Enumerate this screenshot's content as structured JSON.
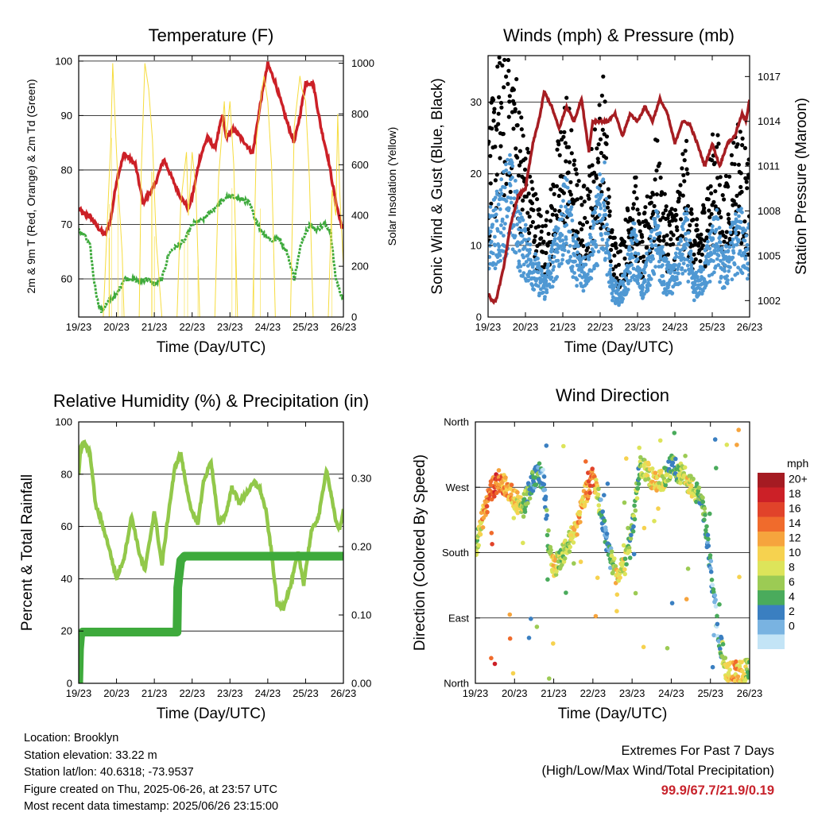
{
  "chart_data": [
    {
      "type": "line",
      "title": "Temperature (F)",
      "xlabel": "Time (Day/UTC)",
      "ylabel": "2m & 9m T (Red, Orange) & 2m Td (Green)",
      "y2label": "Solar Insolation (Yellow)",
      "x_ticks": [
        "19/23",
        "20/23",
        "21/23",
        "22/23",
        "23/23",
        "24/23",
        "25/23",
        "26/23"
      ],
      "ylim": [
        53,
        101
      ],
      "y_ticks": [
        60,
        70,
        80,
        90,
        100
      ],
      "y2lim": [
        0,
        1030
      ],
      "y2_ticks": [
        0,
        200,
        400,
        600,
        800,
        1000
      ],
      "grid": true,
      "series": [
        {
          "key": "t2m",
          "color": "#cc2027",
          "x": [
            0,
            0.1,
            0.3,
            0.5,
            0.7,
            0.85,
            1.0,
            1.2,
            1.5,
            1.7,
            2.0,
            2.25,
            2.5,
            2.7,
            2.9,
            3.0,
            3.2,
            3.4,
            3.6,
            3.8,
            3.9,
            4.1,
            4.4,
            4.6,
            4.8,
            5.0,
            5.2,
            5.5,
            5.7,
            5.85,
            6.0,
            6.2,
            6.4,
            6.6,
            6.75,
            6.9,
            7.0
          ],
          "y": [
            73,
            72,
            71.5,
            69.5,
            68,
            71,
            78,
            83,
            81,
            74,
            77,
            82,
            78,
            75,
            73,
            75,
            82,
            86,
            84,
            90,
            86,
            87.5,
            85,
            83,
            92,
            99.5,
            96,
            89,
            85,
            90,
            96,
            96,
            88,
            82,
            76,
            71,
            69
          ]
        },
        {
          "key": "td2m",
          "color": "#3eaa3c",
          "x": [
            0,
            0.15,
            0.3,
            0.4,
            0.5,
            0.6,
            0.8,
            1.0,
            1.2,
            1.4,
            1.6,
            1.8,
            2.0,
            2.2,
            2.4,
            2.6,
            2.8,
            3.0,
            3.3,
            3.6,
            3.9,
            4.2,
            4.5,
            4.8,
            5.1,
            5.3,
            5.5,
            5.7,
            5.9,
            6.1,
            6.3,
            6.5,
            6.65,
            6.8,
            7.0
          ],
          "y": [
            69,
            68,
            66,
            60,
            56,
            54,
            56,
            57,
            60,
            60,
            59.5,
            60,
            59,
            60,
            65,
            66,
            67,
            70,
            71,
            73,
            75,
            75,
            74,
            69,
            67,
            67.5,
            65,
            60,
            67,
            70,
            69,
            70,
            69,
            60,
            56
          ]
        },
        {
          "key": "solar",
          "color": "#f6dc3e",
          "axis": "y2",
          "x": [
            0.65,
            0.85,
            0.9,
            1.0,
            1.05,
            1.15,
            1.2,
            1.6,
            1.65,
            1.75,
            1.85,
            1.95,
            2.05,
            2.2,
            2.6,
            2.7,
            2.85,
            2.9,
            3.0,
            3.1,
            3.2,
            3.6,
            3.7,
            3.85,
            3.9,
            4.0,
            4.1,
            4.2,
            4.6,
            4.7,
            4.85,
            4.9,
            5.0,
            5.1,
            5.2,
            5.6,
            5.7,
            5.85,
            5.9,
            6.0,
            6.1,
            6.2,
            6.6,
            6.7,
            6.8,
            6.85,
            6.9,
            7.0
          ],
          "y": [
            0,
            700,
            1000,
            650,
            500,
            250,
            0,
            0,
            550,
            1000,
            900,
            700,
            300,
            0,
            0,
            450,
            650,
            400,
            650,
            500,
            0,
            0,
            550,
            850,
            700,
            850,
            600,
            0,
            0,
            700,
            900,
            950,
            850,
            600,
            0,
            0,
            750,
            950,
            900,
            850,
            550,
            0,
            0,
            500,
            400,
            800,
            500,
            200
          ]
        }
      ]
    },
    {
      "type": "scatter",
      "title": "Winds (mph) & Pressure (mb)",
      "xlabel": "Time (Day/UTC)",
      "ylabel": "Sonic Wind & Gust (Blue, Black)",
      "y2label": "Station Pressure (Maroon)",
      "x_ticks": [
        "19/23",
        "20/23",
        "21/23",
        "22/23",
        "23/23",
        "24/23",
        "25/23",
        "26/23"
      ],
      "ylim": [
        0,
        36.5
      ],
      "y_ticks": [
        0,
        10,
        20,
        30
      ],
      "y2lim": [
        1000.9,
        1018.4
      ],
      "y2_ticks": [
        1002,
        1005,
        1008,
        1011,
        1014,
        1017
      ],
      "grid": true,
      "series": [
        {
          "key": "gust",
          "color": "#000000",
          "x": [
            0,
            0.2,
            0.4,
            0.55,
            0.7,
            0.9,
            1.1,
            1.3,
            1.5,
            1.7,
            1.9,
            2.1,
            2.3,
            2.5,
            2.7,
            2.9,
            3.1,
            3.3,
            3.5,
            3.7,
            3.9,
            4.1,
            4.3,
            4.5,
            4.7,
            4.9,
            5.1,
            5.3,
            5.5,
            5.7,
            5.9,
            6.1,
            6.3,
            6.5,
            6.7,
            6.85,
            7.0
          ],
          "y": [
            18,
            24,
            28,
            32,
            26,
            20,
            16,
            12,
            9,
            13,
            18,
            23,
            16,
            12,
            15,
            20,
            24,
            9,
            7,
            10,
            16,
            8,
            13,
            18,
            12,
            11,
            13,
            18,
            9,
            10,
            15,
            20,
            12,
            17,
            20,
            17,
            15
          ]
        },
        {
          "key": "wind",
          "color": "#4f98d3",
          "x": [
            0,
            0.2,
            0.4,
            0.55,
            0.7,
            0.9,
            1.1,
            1.3,
            1.5,
            1.7,
            1.9,
            2.1,
            2.3,
            2.5,
            2.7,
            2.9,
            3.1,
            3.3,
            3.5,
            3.7,
            3.9,
            4.1,
            4.3,
            4.5,
            4.7,
            4.9,
            5.1,
            5.3,
            5.5,
            5.7,
            5.9,
            6.1,
            6.3,
            6.5,
            6.7,
            6.85,
            7.0
          ],
          "y": [
            10,
            12,
            14,
            17,
            14,
            10,
            8,
            6,
            4,
            7,
            11,
            14,
            9,
            6,
            8,
            12,
            16,
            4,
            3,
            5,
            10,
            4,
            7,
            11,
            6,
            5,
            7,
            11,
            4,
            5,
            8,
            11,
            6,
            9,
            11,
            10,
            9
          ]
        },
        {
          "key": "pressure",
          "color": "#a61d22",
          "axis": "y2",
          "render": "line",
          "x": [
            0,
            0.1,
            0.2,
            0.4,
            0.6,
            0.8,
            1.0,
            1.2,
            1.4,
            1.5,
            1.7,
            1.9,
            2.1,
            2.3,
            2.5,
            2.7,
            2.8,
            3.0,
            3.2,
            3.4,
            3.6,
            3.8,
            4.0,
            4.2,
            4.4,
            4.6,
            4.8,
            5.0,
            5.2,
            5.4,
            5.6,
            5.8,
            6.0,
            6.2,
            6.4,
            6.6,
            6.8,
            6.9,
            7.0
          ],
          "y": [
            1002.5,
            1002,
            1001.9,
            1004,
            1007,
            1009,
            1009.5,
            1012.5,
            1014.5,
            1016,
            1015,
            1013.5,
            1015,
            1014,
            1015.5,
            1012,
            1014,
            1014,
            1014,
            1014.5,
            1013,
            1014.5,
            1014,
            1015,
            1014,
            1015.5,
            1014.5,
            1012.5,
            1014,
            1013.8,
            1012.5,
            1011,
            1012.5,
            1011,
            1012.5,
            1013,
            1014.5,
            1014,
            1015.5
          ]
        }
      ]
    },
    {
      "type": "line",
      "title": "Relative Humidity (%) & Precipitation (in)",
      "xlabel": "Time (Day/UTC)",
      "ylabel": "Percent & Total Rainfall",
      "x_ticks": [
        "19/23",
        "20/23",
        "21/23",
        "22/23",
        "23/23",
        "24/23",
        "25/23",
        "26/23"
      ],
      "ylim": [
        0,
        100
      ],
      "y_ticks": [
        0,
        20,
        40,
        60,
        80,
        100
      ],
      "y2lim": [
        0,
        0.3825
      ],
      "y2_ticks": [
        "0.00",
        "0.10",
        "0.20",
        "0.30"
      ],
      "grid": true,
      "series": [
        {
          "key": "rh",
          "color": "#92c84a",
          "x": [
            0,
            0.05,
            0.15,
            0.3,
            0.45,
            0.6,
            0.8,
            1.0,
            1.2,
            1.4,
            1.6,
            1.75,
            1.85,
            2.0,
            2.2,
            2.4,
            2.55,
            2.7,
            2.85,
            3.0,
            3.15,
            3.3,
            3.5,
            3.7,
            3.9,
            4.05,
            4.25,
            4.45,
            4.65,
            4.8,
            4.95,
            5.1,
            5.25,
            5.4,
            5.6,
            5.8,
            5.95,
            6.15,
            6.35,
            6.55,
            6.65,
            6.8,
            6.9,
            7.0
          ],
          "y": [
            80,
            90,
            92,
            88,
            68,
            62,
            52,
            40,
            48,
            64,
            50,
            43,
            52,
            66,
            45,
            68,
            83,
            88,
            75,
            65,
            61,
            77,
            85,
            61,
            65,
            75,
            69,
            73,
            77,
            74,
            66,
            50,
            30,
            29,
            37,
            50,
            38,
            58,
            64,
            82,
            74,
            62,
            59,
            66
          ]
        },
        {
          "key": "precip",
          "color": "#3eaa3c",
          "axis": "y2",
          "x": [
            0,
            0.02,
            0.05,
            0.1,
            0.2,
            2.6,
            2.62,
            2.7,
            2.8,
            7.0
          ],
          "y": [
            0.0,
            0.05,
            0.07,
            0.075,
            0.075,
            0.075,
            0.14,
            0.18,
            0.186,
            0.186
          ]
        }
      ]
    },
    {
      "type": "scatter",
      "title": "Wind Direction",
      "xlabel": "Time (Day/UTC)",
      "ylabel": "Direction (Colored By Speed)",
      "x_ticks": [
        "19/23",
        "20/23",
        "21/23",
        "22/23",
        "23/23",
        "24/23",
        "25/23",
        "26/23"
      ],
      "ylim": [
        0,
        360
      ],
      "y_tick_labels": [
        "North",
        "East",
        "South",
        "West",
        "North"
      ],
      "y_tick_values": [
        0,
        90,
        180,
        270,
        360
      ],
      "grid": true,
      "colorbar": {
        "title": "mph",
        "labels": [
          "20+",
          "18",
          "16",
          "14",
          "12",
          "10",
          "8",
          "6",
          "4",
          "2",
          "0"
        ],
        "colors": [
          "#a51b22",
          "#cc2027",
          "#e1432a",
          "#f06b2c",
          "#f6a43d",
          "#f6d24f",
          "#dde45a",
          "#9ccb54",
          "#4aab5c",
          "#3a7fc1",
          "#79b3e1",
          "#c3e4f6"
        ]
      },
      "series": [
        {
          "key": "dir",
          "x": [
            0,
            0.2,
            0.4,
            0.6,
            0.8,
            1.0,
            1.2,
            1.4,
            1.6,
            1.75,
            1.85,
            2.0,
            2.2,
            2.4,
            2.6,
            2.8,
            3.0,
            3.2,
            3.4,
            3.6,
            3.8,
            4.0,
            4.2,
            4.4,
            4.6,
            4.8,
            5.0,
            5.2,
            5.4,
            5.6,
            5.8,
            6.0,
            6.2,
            6.4,
            6.6,
            6.8,
            7.0
          ],
          "y": [
            185,
            230,
            265,
            280,
            270,
            255,
            240,
            270,
            290,
            280,
            200,
            160,
            175,
            195,
            220,
            260,
            285,
            240,
            180,
            150,
            160,
            210,
            300,
            290,
            275,
            280,
            300,
            290,
            280,
            265,
            250,
            160,
            70,
            20,
            15,
            15,
            20
          ],
          "speed": [
            8,
            14,
            19,
            17,
            15,
            13,
            10,
            7,
            6,
            4,
            7,
            14,
            9,
            10,
            13,
            15,
            18,
            6,
            4,
            13,
            11,
            7,
            9,
            11,
            13,
            10,
            7,
            9,
            12,
            9,
            7,
            5,
            4,
            12,
            15,
            13,
            8
          ]
        }
      ]
    }
  ],
  "info": {
    "location": "Location: Brooklyn",
    "elevation": "Station elevation: 33.22 m",
    "latlon": "Station lat/lon: 40.6318; -73.9537",
    "created": "Figure created on Thu, 2025-06-26, at 23:57 UTC",
    "timestamp": "Most recent data timestamp: 2025/06/26 23:15:00"
  },
  "extremes": {
    "heading": "Extremes For Past 7 Days",
    "subheading": "(High/Low/Max Wind/Total Precipitation)",
    "values": "99.9/67.7/21.9/0.19"
  }
}
